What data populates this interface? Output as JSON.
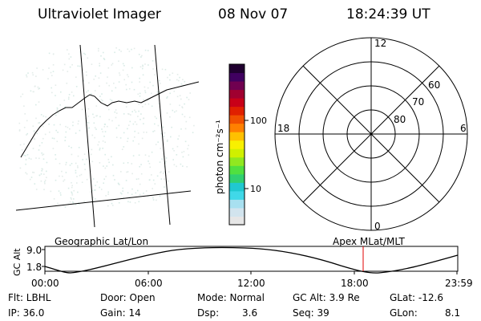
{
  "header": {
    "app_title": "Ultraviolet Imager",
    "date": "08 Nov 07",
    "time": "18:24:39 UT"
  },
  "colorbar": {
    "label": "photon cm⁻²s⁻¹",
    "ticks": [
      "100",
      "10"
    ],
    "colors": [
      "#e6e6e6",
      "#d2e4ee",
      "#a8e0f0",
      "#40d8e8",
      "#20c8d0",
      "#30d070",
      "#50e040",
      "#90e820",
      "#d0f000",
      "#f8f000",
      "#ffc000",
      "#ff8000",
      "#f05000",
      "#e02000",
      "#c80018",
      "#a00030",
      "#700050",
      "#400060",
      "#200030"
    ]
  },
  "polar": {
    "labels": [
      "12",
      "18",
      "6",
      "0",
      "60",
      "70",
      "80"
    ]
  },
  "altitude_plot": {
    "left_label": "Geographic Lat/Lon",
    "right_label": "Apex MLat/MLT",
    "y_axis_label": "GC Alt",
    "y_ticks": [
      "9.0",
      "1.8"
    ],
    "x_ticks": [
      "00:00",
      "06:00",
      "12:00",
      "18:00",
      "23:59"
    ]
  },
  "info": {
    "flt": "Flt: LBHL",
    "ip": "IP: 36.0",
    "door": "Door: Open",
    "gain": "Gain: 14",
    "mode": "Mode: Normal",
    "dsp": "Dsp:",
    "dsp_value": "3.6",
    "gcalt": "GC Alt: 3.9 Re",
    "seq": "Seq: 39",
    "glat": "GLat: -12.6",
    "glon_label": "GLon:",
    "glon_value": "8.1"
  }
}
